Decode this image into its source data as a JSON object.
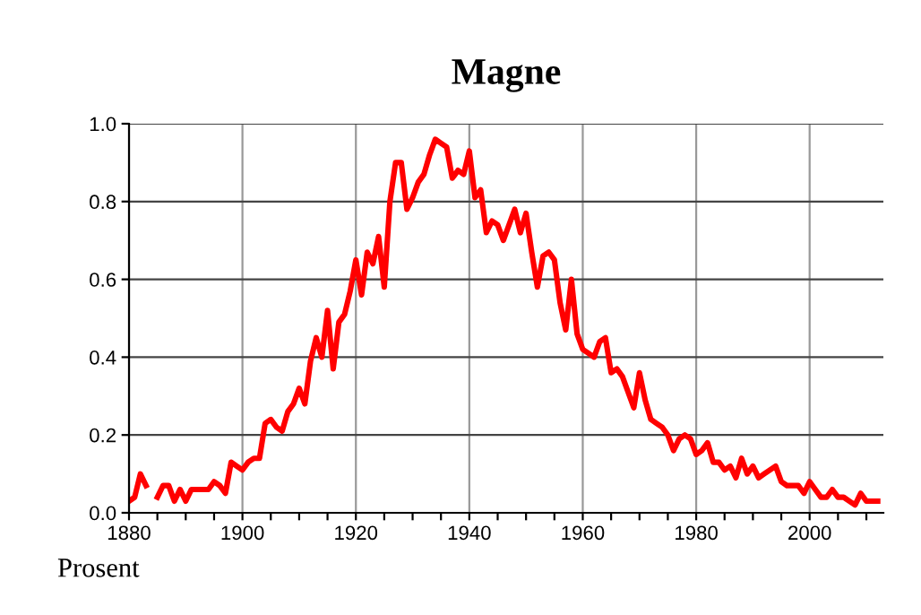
{
  "chart_data": {
    "type": "line",
    "title": "Magne",
    "ylabel": "Prosent",
    "x": [
      1880,
      1881,
      1882,
      1883,
      1884,
      1885,
      1886,
      1887,
      1888,
      1889,
      1890,
      1891,
      1892,
      1893,
      1894,
      1895,
      1896,
      1897,
      1898,
      1899,
      1900,
      1901,
      1902,
      1903,
      1904,
      1905,
      1906,
      1907,
      1908,
      1909,
      1910,
      1911,
      1912,
      1913,
      1914,
      1915,
      1916,
      1917,
      1918,
      1919,
      1920,
      1921,
      1922,
      1923,
      1924,
      1925,
      1926,
      1927,
      1928,
      1929,
      1930,
      1931,
      1932,
      1933,
      1934,
      1935,
      1936,
      1937,
      1938,
      1939,
      1940,
      1941,
      1942,
      1943,
      1944,
      1945,
      1946,
      1947,
      1948,
      1949,
      1950,
      1951,
      1952,
      1953,
      1954,
      1955,
      1956,
      1957,
      1958,
      1959,
      1960,
      1961,
      1962,
      1963,
      1964,
      1965,
      1966,
      1967,
      1968,
      1969,
      1970,
      1971,
      1972,
      1973,
      1974,
      1975,
      1976,
      1977,
      1978,
      1979,
      1980,
      1981,
      1982,
      1983,
      1984,
      1985,
      1986,
      1987,
      1988,
      1989,
      1990,
      1991,
      1992,
      1993,
      1994,
      1995,
      1996,
      1997,
      1998,
      1999,
      2000,
      2001,
      2002,
      2003,
      2004,
      2005,
      2006,
      2007,
      2008,
      2009,
      2010,
      2011,
      2012
    ],
    "series": [
      {
        "color": "#ff0000",
        "values": [
          0.03,
          0.04,
          0.1,
          0.07,
          null,
          0.04,
          0.07,
          0.07,
          0.03,
          0.06,
          0.03,
          0.06,
          0.06,
          0.06,
          0.06,
          0.08,
          0.07,
          0.05,
          0.13,
          0.12,
          0.11,
          0.13,
          0.14,
          0.14,
          0.23,
          0.24,
          0.22,
          0.21,
          0.26,
          0.28,
          0.32,
          0.28,
          0.39,
          0.45,
          0.4,
          0.52,
          0.37,
          0.49,
          0.51,
          0.57,
          0.65,
          0.56,
          0.67,
          0.64,
          0.71,
          0.58,
          0.8,
          0.9,
          0.9,
          0.78,
          0.81,
          0.85,
          0.87,
          0.92,
          0.96,
          0.95,
          0.94,
          0.86,
          0.88,
          0.87,
          0.93,
          0.81,
          0.83,
          0.72,
          0.75,
          0.74,
          0.7,
          0.74,
          0.78,
          0.72,
          0.77,
          0.67,
          0.58,
          0.66,
          0.67,
          0.65,
          0.54,
          0.47,
          0.6,
          0.46,
          0.42,
          0.41,
          0.4,
          0.44,
          0.45,
          0.36,
          0.37,
          0.35,
          0.31,
          0.27,
          0.36,
          0.29,
          0.24,
          0.23,
          0.22,
          0.2,
          0.16,
          0.19,
          0.2,
          0.19,
          0.15,
          0.16,
          0.18,
          0.13,
          0.13,
          0.11,
          0.12,
          0.09,
          0.14,
          0.1,
          0.12,
          0.09,
          0.1,
          0.11,
          0.12,
          0.08,
          0.07,
          0.07,
          0.07,
          0.05,
          0.08,
          0.06,
          0.04,
          0.04,
          0.06,
          0.04,
          0.04,
          0.03,
          0.02,
          0.05,
          0.03,
          0.03,
          0.03
        ]
      }
    ],
    "xlim": [
      1880,
      2013
    ],
    "xticks": [
      1880,
      {
        "value": 1885,
        "label": null
      },
      {
        "value": 1890,
        "label": null
      },
      {
        "value": 1895,
        "label": null
      },
      1900,
      {
        "value": 1905,
        "label": null
      },
      {
        "value": 1910,
        "label": null
      },
      {
        "value": 1915,
        "label": null
      },
      1920,
      {
        "value": 1925,
        "label": null
      },
      {
        "value": 1930,
        "label": null
      },
      {
        "value": 1935,
        "label": null
      },
      1940,
      {
        "value": 1945,
        "label": null
      },
      {
        "value": 1950,
        "label": null
      },
      {
        "value": 1955,
        "label": null
      },
      1960,
      {
        "value": 1965,
        "label": null
      },
      {
        "value": 1970,
        "label": null
      },
      {
        "value": 1975,
        "label": null
      },
      1980,
      {
        "value": 1985,
        "label": null
      },
      {
        "value": 1990,
        "label": null
      },
      {
        "value": 1995,
        "label": null
      },
      2000,
      {
        "value": 2005,
        "label": null
      },
      {
        "value": 2010,
        "label": null
      }
    ],
    "ylim": [
      0,
      1
    ],
    "yticks": [
      {
        "value": 0,
        "label": "0.0"
      },
      {
        "value": 0.2,
        "label": "0.2"
      },
      {
        "value": 0.4,
        "label": "0.4"
      },
      {
        "value": 0.6,
        "label": "0.6"
      },
      {
        "value": 0.8,
        "label": "0.8"
      },
      {
        "value": 1,
        "label": "1.0"
      }
    ],
    "grid": true,
    "line_style": "solid",
    "marker": "none"
  }
}
